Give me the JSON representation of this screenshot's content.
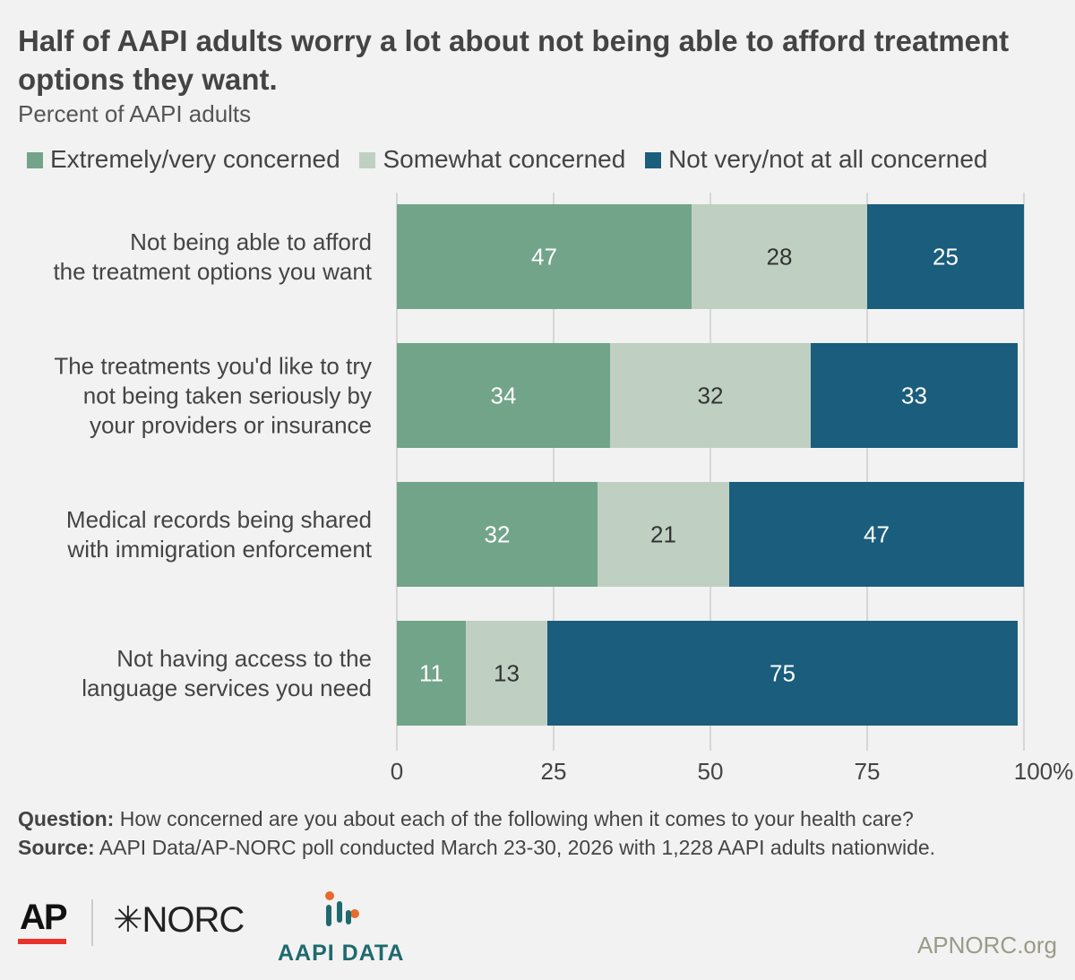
{
  "title": "Half of AAPI adults worry a lot about not being able to afford treatment options they want.",
  "subtitle": "Percent of AAPI adults",
  "legend": [
    {
      "label": "Extremely/very concerned",
      "color": "#72a489"
    },
    {
      "label": "Somewhat concerned",
      "color": "#bfd0c2"
    },
    {
      "label": "Not very/not at all concerned",
      "color": "#1a5d7c"
    }
  ],
  "chart_data": {
    "type": "bar",
    "orientation": "horizontal",
    "stacked": true,
    "categories": [
      [
        "Not being able to afford",
        "the treatment options you want"
      ],
      [
        "The treatments you'd like to try",
        "not being taken seriously by",
        "your providers or insurance"
      ],
      [
        "Medical records being shared",
        "with immigration enforcement"
      ],
      [
        "Not having access to the",
        "language services you need"
      ]
    ],
    "series": [
      {
        "name": "Extremely/very concerned",
        "color": "#72a489",
        "label_color": "#ffffff",
        "values": [
          47,
          34,
          32,
          11
        ]
      },
      {
        "name": "Somewhat concerned",
        "color": "#bfd0c2",
        "label_color": "#333333",
        "values": [
          28,
          32,
          21,
          13
        ]
      },
      {
        "name": "Not very/not at all concerned",
        "color": "#1a5d7c",
        "label_color": "#ffffff",
        "values": [
          25,
          33,
          47,
          75
        ]
      }
    ],
    "xlim": [
      0,
      100
    ],
    "xticks": [
      0,
      25,
      50,
      75,
      100
    ],
    "xtick_labels": [
      "0",
      "25",
      "50",
      "75",
      "100%"
    ],
    "grid": true
  },
  "footnote": {
    "question_label": "Question:",
    "question_text": " How concerned are you about each of the following when it comes to your health care?",
    "source_label": "Source:",
    "source_text": " AAPI Data/AP-NORC poll conducted March 23-30, 2026 with 1,228 AAPI adults nationwide."
  },
  "logos": {
    "ap": "AP",
    "norc": "NORC",
    "aapi": "AAPI DATA",
    "site": "APNORC.org"
  }
}
